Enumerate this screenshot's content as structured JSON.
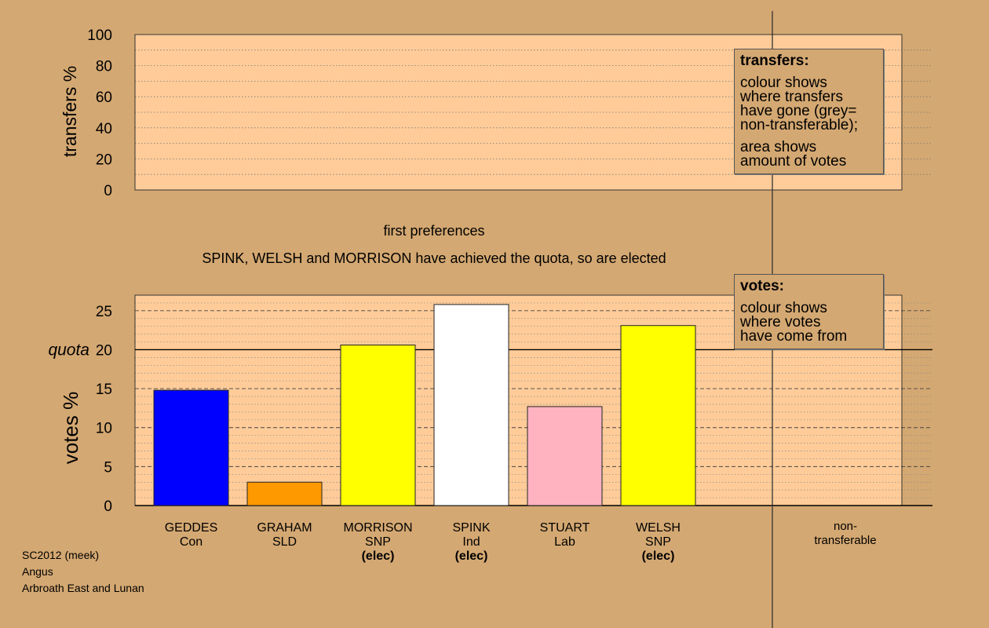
{
  "chart_data": [
    {
      "type": "bar",
      "panel": "transfers",
      "ylabel": "transfers %",
      "ylim": [
        0,
        100
      ],
      "yticks": [
        0,
        20,
        40,
        60,
        80,
        100
      ],
      "categories": [],
      "values": []
    },
    {
      "type": "bar",
      "panel": "votes",
      "title": "first preferences",
      "subtitle": "SPINK, WELSH and MORRISON have achieved the quota, so are elected",
      "ylabel": "votes %",
      "ylim": [
        0,
        27
      ],
      "yticks": [
        0,
        5,
        10,
        15,
        20,
        25
      ],
      "quota": 20,
      "quota_label": "quota",
      "categories": [
        "GEDDES",
        "GRAHAM",
        "MORRISON",
        "SPINK",
        "STUART",
        "WELSH"
      ],
      "parties": [
        "Con",
        "SLD",
        "SNP",
        "Ind",
        "Lab",
        "SNP"
      ],
      "elected": [
        "",
        "",
        "(elec)",
        "(elec)",
        "",
        "(elec)"
      ],
      "values": [
        14.8,
        3.0,
        20.6,
        25.8,
        12.7,
        23.1
      ],
      "colors": [
        "#0000ff",
        "#ff9900",
        "#ffff00",
        "#ffffff",
        "#ffb3c1",
        "#ffff00"
      ],
      "nontransferable_label": "non-\ntransferable"
    }
  ],
  "legend_transfers": {
    "title": "transfers:",
    "lines1": [
      "colour shows",
      "where transfers",
      "have gone (grey=",
      "non-transferable);"
    ],
    "lines2": [
      "area shows",
      "amount of votes"
    ]
  },
  "legend_votes": {
    "title": "votes:",
    "lines1": [
      "colour shows",
      "where votes",
      "have come from"
    ]
  },
  "footer": {
    "line1": "SC2012 (meek)",
    "line2": "Angus",
    "line3": "Arbroath East and Lunan"
  },
  "colors": {
    "background": "#d4a872",
    "plot_background": "#ffcc99"
  }
}
